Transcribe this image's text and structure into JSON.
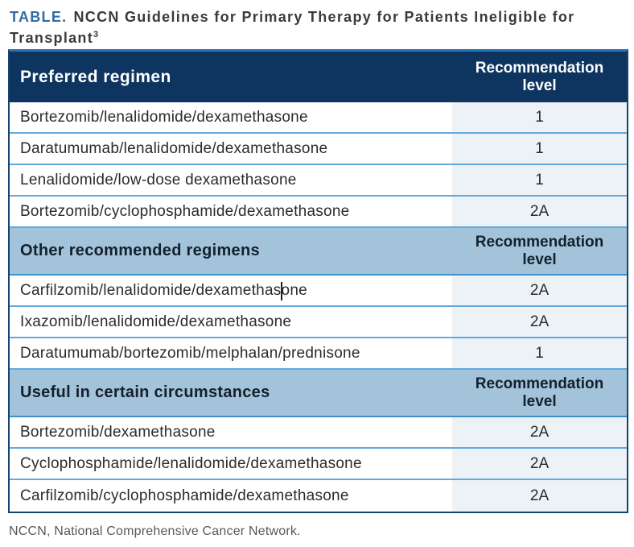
{
  "title": {
    "prefix": "TABLE.",
    "text": "NCCN Guidelines for Primary Therapy for Patients Ineligible for Transplant",
    "superscript": "3"
  },
  "table": {
    "column_header": "Recommendation level",
    "sections": [
      {
        "label": "Preferred regimen",
        "rows": [
          {
            "regimen": "Bortezomib/lenalidomide/dexamethasone",
            "level": "1"
          },
          {
            "regimen": "Daratumumab/lenalidomide/dexamethasone",
            "level": "1"
          },
          {
            "regimen": "Lenalidomide/low-dose dexamethasone",
            "level": "1"
          },
          {
            "regimen": "Bortezomib/cyclophosphamide/dexamethasone",
            "level": "2A"
          }
        ]
      },
      {
        "label": "Other recommended regimens",
        "rows": [
          {
            "regimen": "Carfilzomib/lenalidomide/dexamethasone",
            "level": "2A"
          },
          {
            "regimen": "Ixazomib/lenalidomide/dexamethasone",
            "level": "2A"
          },
          {
            "regimen": "Daratumumab/bortezomib/melphalan/prednisone",
            "level": "1"
          }
        ]
      },
      {
        "label": "Useful in certain circumstances",
        "rows": [
          {
            "regimen": "Bortezomib/dexamethasone",
            "level": "2A"
          },
          {
            "regimen": "Cyclophosphamide/lenalidomide/dexamethasone",
            "level": "2A"
          },
          {
            "regimen": "Carfilzomib/cyclophosphamide/dexamethasone",
            "level": "2A"
          }
        ]
      }
    ]
  },
  "footnote": "NCCN, National Comprehensive Cancer Network.",
  "colors": {
    "accent_blue": "#2e6ca5",
    "header_navy": "#0d355f",
    "section_steel_blue": "#a2c3da",
    "level_cell_bg": "#edf2f7",
    "row_separator": "#62aadc",
    "section_bottom_border": "#3f90c8",
    "outer_border": "#16436f",
    "top_border": "#2a76b4"
  }
}
